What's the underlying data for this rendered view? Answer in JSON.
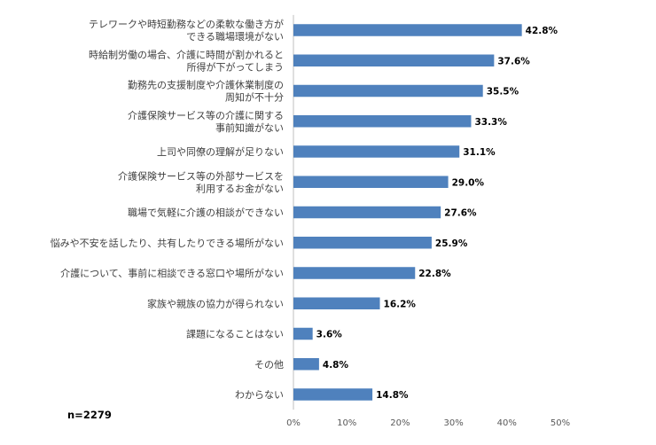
{
  "chart_data": {
    "type": "bar",
    "orientation": "horizontal",
    "categories": [
      [
        "テレワークや時短勤務などの柔軟な働き方が",
        "できる職場環境がない"
      ],
      [
        "時給制労働の場合、介護に時間が割かれると",
        "所得が下がってしまう"
      ],
      [
        "勤務先の支援制度や介護休業制度の",
        "周知が不十分"
      ],
      [
        "介護保険サービス等の介護に関する",
        "事前知識がない"
      ],
      [
        "上司や同僚の理解が足りない"
      ],
      [
        "介護保険サービス等の外部サービスを",
        "利用するお金がない"
      ],
      [
        "職場で気軽に介護の相談ができない"
      ],
      [
        "悩みや不安を話したり、共有したりできる場所がない"
      ],
      [
        "介護について、事前に相談できる窓口や場所がない"
      ],
      [
        "家族や親族の協力が得られない"
      ],
      [
        "課題になることはない"
      ],
      [
        "その他"
      ],
      [
        "わからない"
      ]
    ],
    "values": [
      42.8,
      37.6,
      35.5,
      33.3,
      31.1,
      29.0,
      27.6,
      25.9,
      22.8,
      16.2,
      3.6,
      4.8,
      14.8
    ],
    "value_labels": [
      "42.8%",
      "37.6%",
      "35.5%",
      "33.3%",
      "31.1%",
      "29.0%",
      "27.6%",
      "25.9%",
      "22.8%",
      "16.2%",
      "3.6%",
      "4.8%",
      "14.8%"
    ],
    "xlim": [
      0,
      50
    ],
    "ticks": [
      0,
      10,
      20,
      30,
      40,
      50
    ],
    "tick_labels": [
      "0%",
      "10%",
      "20%",
      "30%",
      "40%",
      "50%"
    ],
    "bar_color": "#4f81bd",
    "grid": false,
    "title": "",
    "xlabel": "",
    "ylabel": ""
  },
  "sample_note": "n=2279"
}
